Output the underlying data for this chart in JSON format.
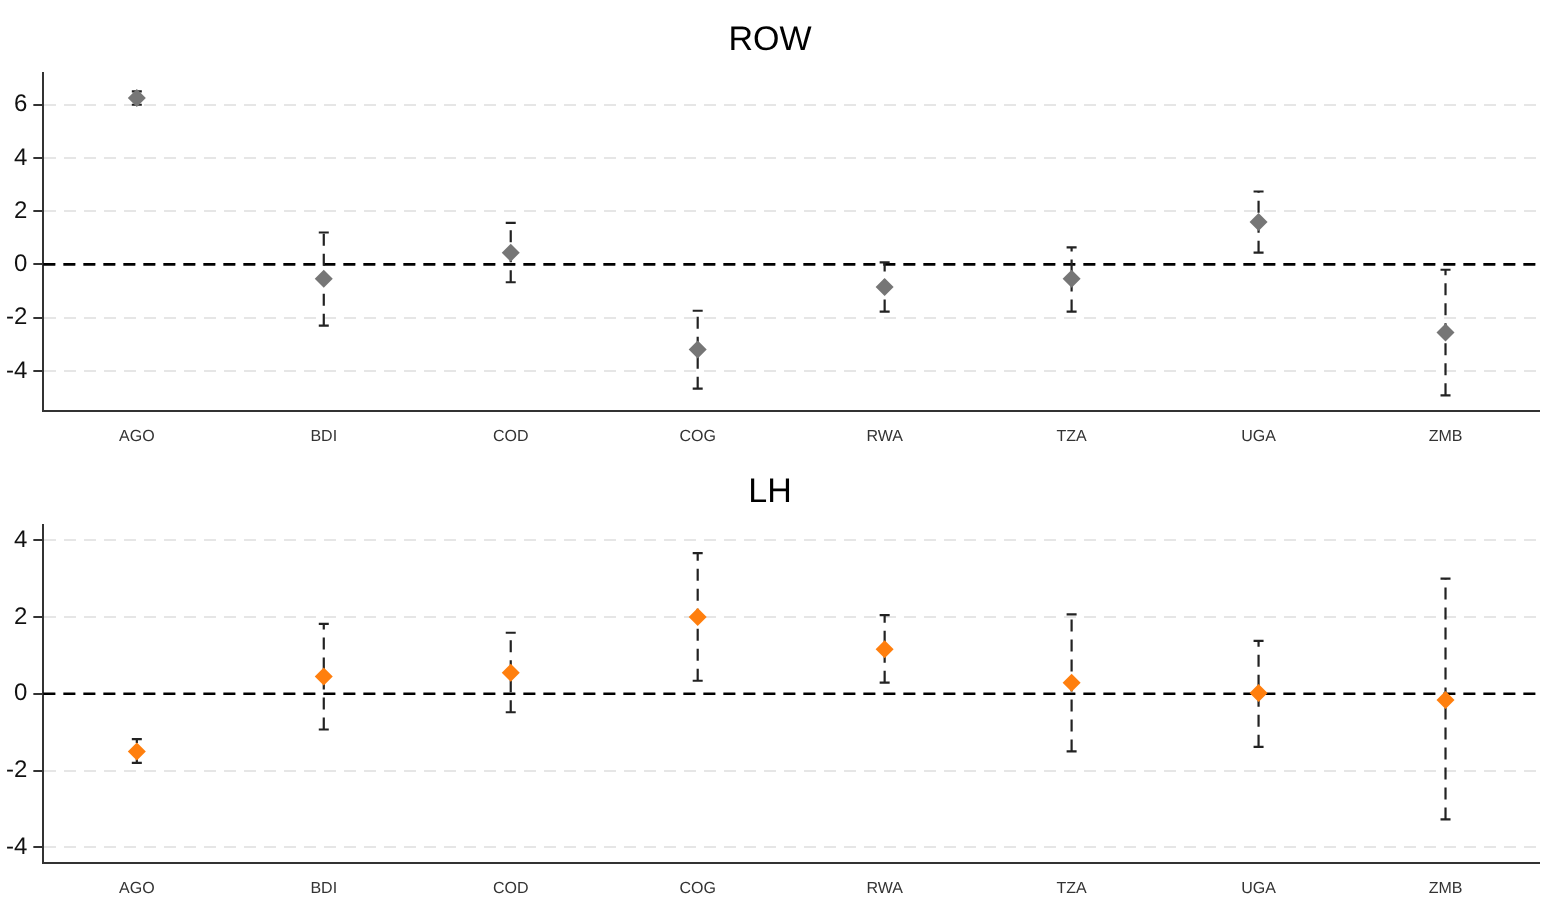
{
  "chart_data": [
    {
      "type": "scatter",
      "title": "ROW",
      "categories": [
        "AGO",
        "BDI",
        "COD",
        "COG",
        "RWA",
        "TZA",
        "UGA",
        "ZMB"
      ],
      "series": [
        {
          "color": "#767676",
          "values": [
            6.25,
            -0.54,
            0.44,
            -3.2,
            -0.85,
            -0.54,
            1.59,
            -2.56
          ],
          "errors": [
            [
              6.0,
              6.5
            ],
            [
              -2.3,
              1.2
            ],
            [
              -0.67,
              1.56
            ],
            [
              -4.67,
              -1.74
            ],
            [
              -1.77,
              0.08
            ],
            [
              -1.77,
              0.64
            ],
            [
              0.44,
              2.74
            ],
            [
              -4.92,
              -0.2
            ]
          ]
        }
      ],
      "ylim": [
        -5.5,
        7.2
      ],
      "yticks": [
        -4,
        -2,
        0,
        2,
        4,
        6
      ],
      "grid": "y",
      "marker": "diamond",
      "legend": false,
      "ref_lines": [
        {
          "axis": "y",
          "value": 0,
          "line_style": "dashed",
          "color": "#000000"
        }
      ]
    },
    {
      "type": "scatter",
      "title": "LH",
      "categories": [
        "AGO",
        "BDI",
        "COD",
        "COG",
        "RWA",
        "TZA",
        "UGA",
        "ZMB"
      ],
      "series": [
        {
          "color": "#ff7f0e",
          "values": [
            -1.5,
            0.45,
            0.55,
            2.0,
            1.16,
            0.29,
            0.02,
            -0.16
          ],
          "errors": [
            [
              -1.8,
              -1.18
            ],
            [
              -0.93,
              1.82
            ],
            [
              -0.48,
              1.59
            ],
            [
              0.34,
              3.66
            ],
            [
              0.29,
              2.05
            ],
            [
              -1.5,
              2.07
            ],
            [
              -1.38,
              1.38
            ],
            [
              -3.27,
              3.0
            ]
          ]
        }
      ],
      "ylim": [
        -4.4,
        4.4
      ],
      "yticks": [
        -4,
        -2,
        0,
        2,
        4
      ],
      "grid": "y",
      "marker": "diamond",
      "legend": false,
      "ref_lines": [
        {
          "axis": "y",
          "value": 0,
          "line_style": "dashed",
          "color": "#000000"
        }
      ]
    }
  ]
}
